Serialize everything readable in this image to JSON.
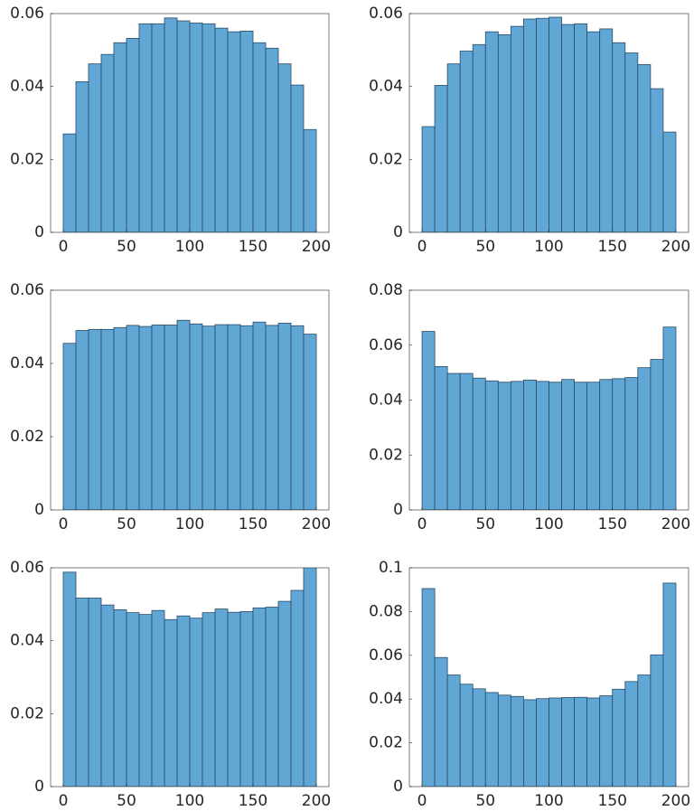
{
  "chart_data": [
    {
      "type": "histogram",
      "color": "#61a7d6",
      "edgecolor": "#2a4a66",
      "bins": [
        0,
        10,
        20,
        30,
        40,
        50,
        60,
        70,
        80,
        90,
        100,
        110,
        120,
        130,
        140,
        150,
        160,
        170,
        180,
        190,
        200
      ],
      "counts": [
        0.027,
        0.0413,
        0.0462,
        0.0488,
        0.052,
        0.0532,
        0.0572,
        0.0572,
        0.0588,
        0.058,
        0.0574,
        0.0572,
        0.056,
        0.055,
        0.0552,
        0.052,
        0.0505,
        0.0462,
        0.0404,
        0.0282
      ],
      "xlim": [
        -10,
        210
      ],
      "xticks": [
        0,
        50,
        100,
        150,
        200
      ],
      "ylim": [
        0,
        0.06
      ],
      "yticks": [
        0,
        0.02,
        0.04,
        0.06
      ]
    },
    {
      "type": "histogram",
      "color": "#61a7d6",
      "edgecolor": "#2a4a66",
      "bins": [
        0,
        10,
        20,
        30,
        40,
        50,
        60,
        70,
        80,
        90,
        100,
        110,
        120,
        130,
        140,
        150,
        160,
        170,
        180,
        190,
        200
      ],
      "counts": [
        0.029,
        0.0403,
        0.0462,
        0.0497,
        0.0515,
        0.055,
        0.0542,
        0.0565,
        0.0585,
        0.0587,
        0.059,
        0.057,
        0.0572,
        0.055,
        0.0558,
        0.052,
        0.0492,
        0.046,
        0.0394,
        0.0275
      ],
      "xlim": [
        -10,
        210
      ],
      "xticks": [
        0,
        50,
        100,
        150,
        200
      ],
      "ylim": [
        0,
        0.06
      ],
      "yticks": [
        0,
        0.02,
        0.04,
        0.06
      ]
    },
    {
      "type": "histogram",
      "color": "#61a7d6",
      "edgecolor": "#2a4a66",
      "bins": [
        0,
        10,
        20,
        30,
        40,
        50,
        60,
        70,
        80,
        90,
        100,
        110,
        120,
        130,
        140,
        150,
        160,
        170,
        180,
        190,
        200
      ],
      "counts": [
        0.0455,
        0.049,
        0.0493,
        0.0493,
        0.0498,
        0.0504,
        0.0501,
        0.0505,
        0.0505,
        0.0518,
        0.0508,
        0.0502,
        0.0506,
        0.0506,
        0.0503,
        0.0513,
        0.0504,
        0.051,
        0.0503,
        0.048
      ],
      "xlim": [
        -10,
        210
      ],
      "xticks": [
        0,
        50,
        100,
        150,
        200
      ],
      "ylim": [
        0,
        0.06
      ],
      "yticks": [
        0,
        0.02,
        0.04,
        0.06
      ]
    },
    {
      "type": "histogram",
      "color": "#61a7d6",
      "edgecolor": "#2a4a66",
      "bins": [
        0,
        10,
        20,
        30,
        40,
        50,
        60,
        70,
        80,
        90,
        100,
        110,
        120,
        130,
        140,
        150,
        160,
        170,
        180,
        190,
        200
      ],
      "counts": [
        0.065,
        0.0522,
        0.0497,
        0.0497,
        0.048,
        0.047,
        0.0465,
        0.0468,
        0.0473,
        0.0468,
        0.0465,
        0.0475,
        0.0465,
        0.0465,
        0.0475,
        0.0478,
        0.0482,
        0.0518,
        0.0548,
        0.0666
      ],
      "xlim": [
        -10,
        210
      ],
      "xticks": [
        0,
        50,
        100,
        150,
        200
      ],
      "ylim": [
        0,
        0.08
      ],
      "yticks": [
        0,
        0.02,
        0.04,
        0.06,
        0.08
      ]
    },
    {
      "type": "histogram",
      "color": "#61a7d6",
      "edgecolor": "#2a4a66",
      "bins": [
        0,
        10,
        20,
        30,
        40,
        50,
        60,
        70,
        80,
        90,
        100,
        110,
        120,
        130,
        140,
        150,
        160,
        170,
        180,
        190,
        200
      ],
      "counts": [
        0.0588,
        0.0517,
        0.0517,
        0.0498,
        0.0485,
        0.0477,
        0.0472,
        0.0483,
        0.0458,
        0.0468,
        0.0462,
        0.0477,
        0.0487,
        0.0478,
        0.048,
        0.049,
        0.0492,
        0.0508,
        0.0538,
        0.0605
      ],
      "xlim": [
        -10,
        210
      ],
      "xticks": [
        0,
        50,
        100,
        150,
        200
      ],
      "ylim": [
        0,
        0.06
      ],
      "yticks": [
        0,
        0.02,
        0.04,
        0.06
      ]
    },
    {
      "type": "histogram",
      "color": "#61a7d6",
      "edgecolor": "#2a4a66",
      "bins": [
        0,
        10,
        20,
        30,
        40,
        50,
        60,
        70,
        80,
        90,
        100,
        110,
        120,
        130,
        140,
        150,
        160,
        170,
        180,
        190,
        200
      ],
      "counts": [
        0.0905,
        0.059,
        0.051,
        0.0468,
        0.0447,
        0.043,
        0.0418,
        0.0412,
        0.0397,
        0.0402,
        0.0405,
        0.0407,
        0.0408,
        0.0405,
        0.0415,
        0.0445,
        0.048,
        0.051,
        0.0602,
        0.093
      ],
      "xlim": [
        -10,
        210
      ],
      "xticks": [
        0,
        50,
        100,
        150,
        200
      ],
      "ylim": [
        0,
        0.1
      ],
      "yticks": [
        0,
        0.02,
        0.04,
        0.06,
        0.08,
        0.1
      ]
    }
  ]
}
